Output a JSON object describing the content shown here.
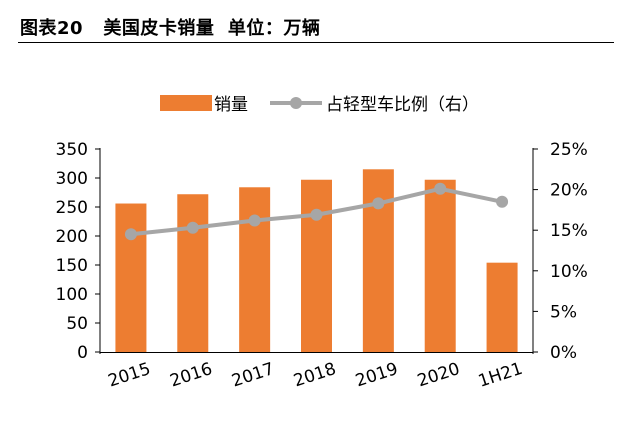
{
  "header": {
    "title": "图表20   美国皮卡销量  单位：万辆"
  },
  "chart_data": {
    "type": "bar",
    "categories": [
      "2015",
      "2016",
      "2017",
      "2018",
      "2019",
      "2020",
      "1H21"
    ],
    "series": [
      {
        "name": "销量",
        "type": "bar",
        "axis": "left",
        "color": "#ED7D31",
        "values": [
          256,
          272,
          284,
          297,
          315,
          297,
          154
        ]
      },
      {
        "name": "占轻型车比例（右）",
        "type": "line",
        "axis": "right",
        "color": "#A6A6A6",
        "values": [
          14.5,
          15.3,
          16.2,
          16.9,
          18.3,
          20.1,
          18.5
        ]
      }
    ],
    "yleft": {
      "min": 0,
      "max": 350,
      "step": 50,
      "tick_labels": [
        "0",
        "50",
        "100",
        "150",
        "200",
        "250",
        "300",
        "350"
      ]
    },
    "yright": {
      "min": 0,
      "max": 25,
      "step": 5,
      "tick_labels": [
        "0%",
        "5%",
        "10%",
        "15%",
        "20%",
        "25%"
      ]
    },
    "legend_position": "top-center",
    "grid": false
  }
}
